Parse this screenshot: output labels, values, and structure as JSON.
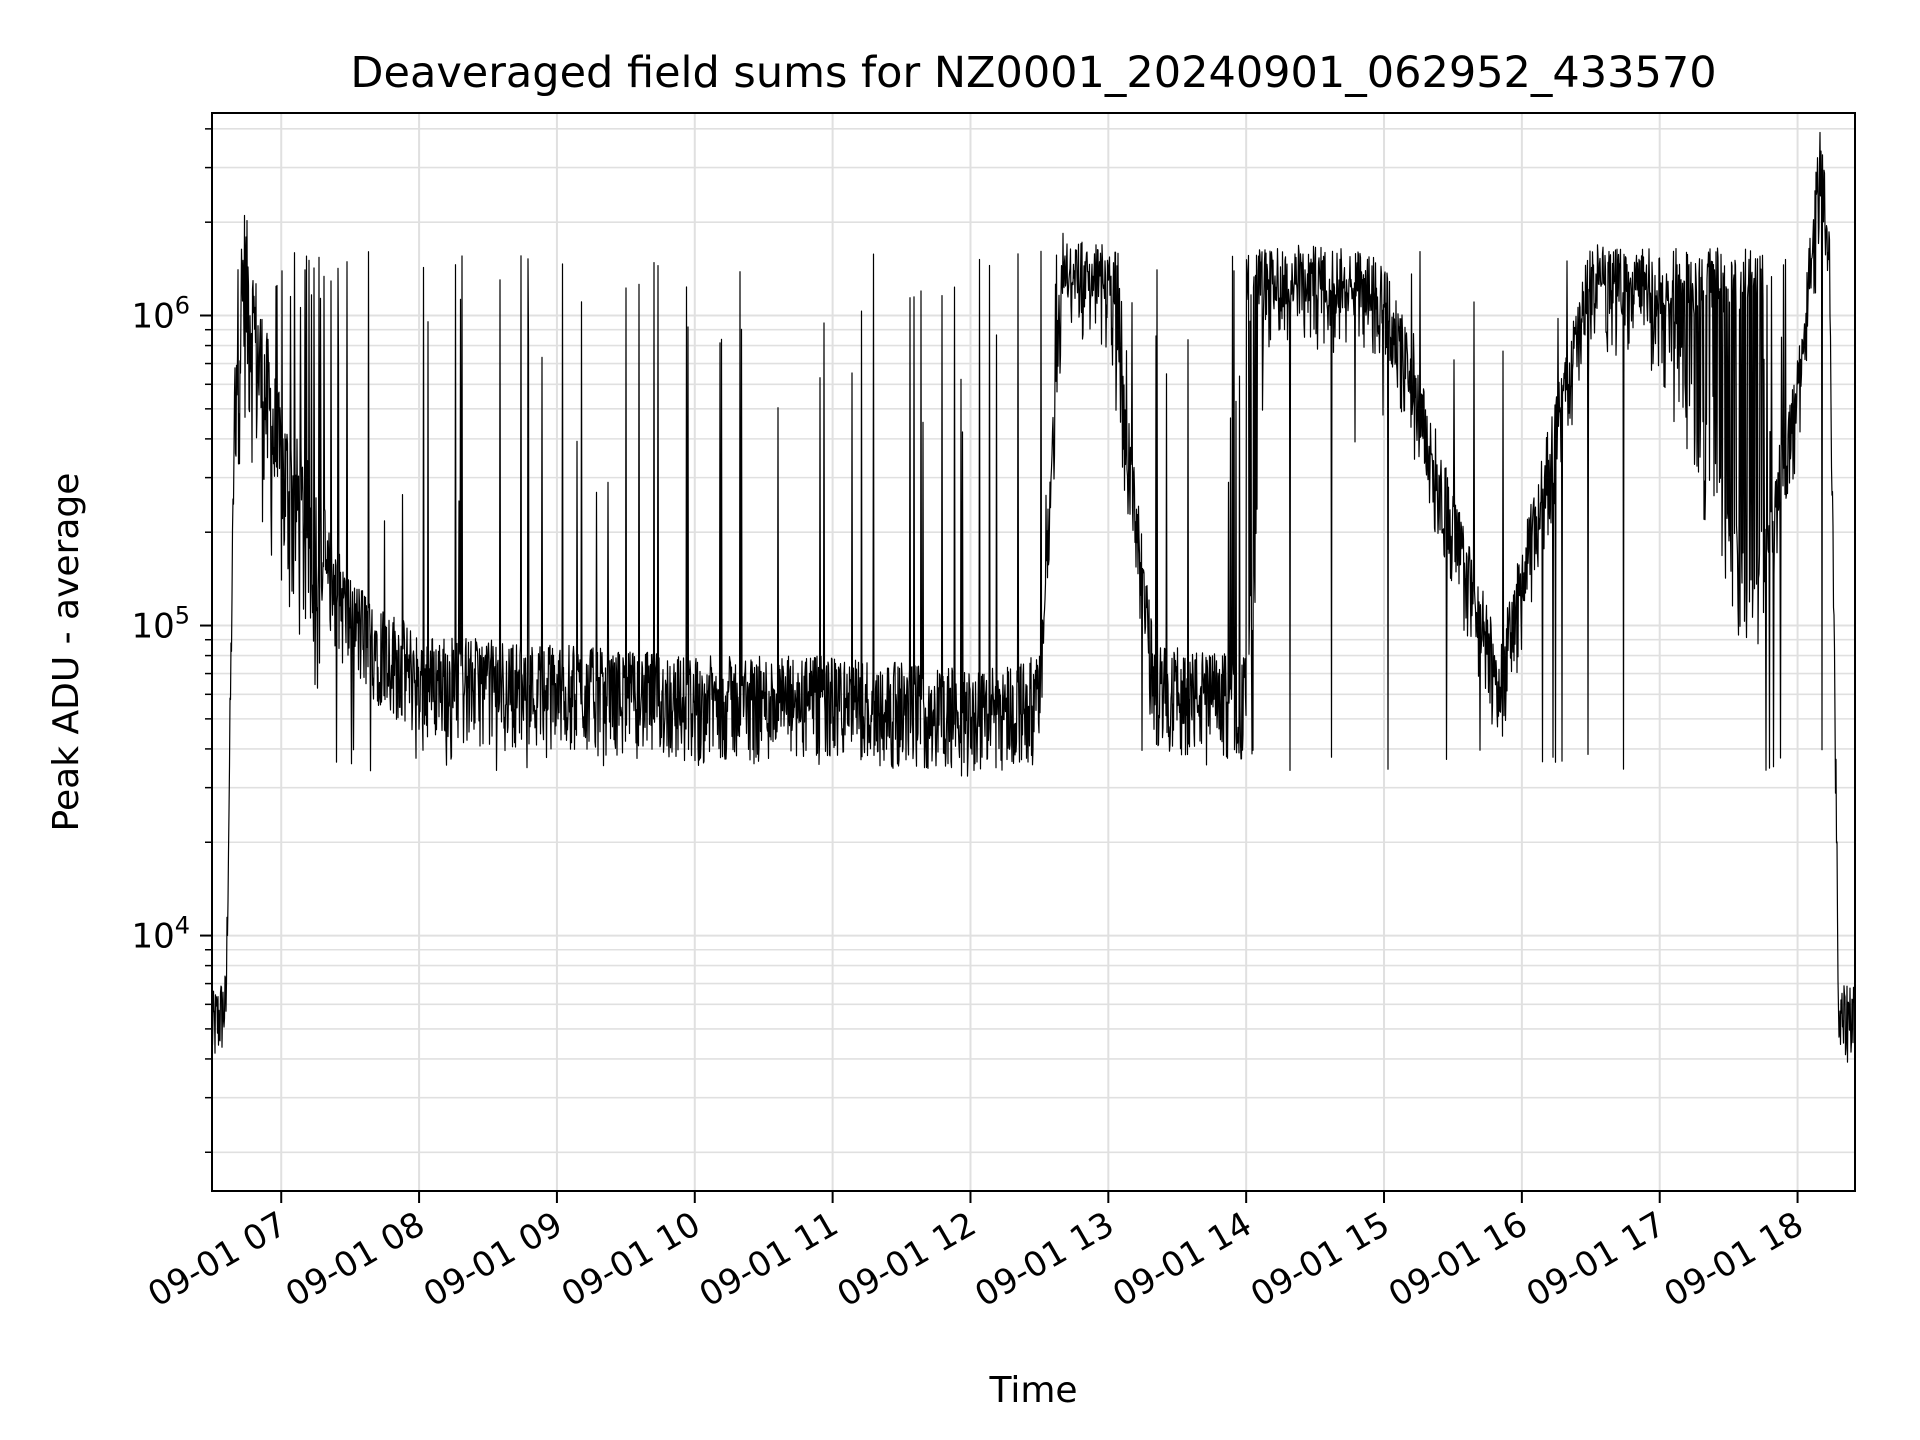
{
  "chart_data": {
    "type": "line",
    "title": "Deaveraged field sums for NZ0001_20240901_062952_433570",
    "xlabel": "Time",
    "ylabel": "Peak ADU - average",
    "yscale": "log",
    "ylim": [
      1500,
      4500000
    ],
    "xlim": [
      "2024-09-01 06:29:52",
      "2024-09-01 18:25:00"
    ],
    "grid": true,
    "line_color": "#000000",
    "grid_color": "#e0e0e0",
    "x_ticks": [
      "09-01 07",
      "09-01 08",
      "09-01 09",
      "09-01 10",
      "09-01 11",
      "09-01 12",
      "09-01 13",
      "09-01 14",
      "09-01 15",
      "09-01 16",
      "09-01 17",
      "09-01 18"
    ],
    "y_ticks": [
      {
        "base": "10",
        "exp": "4",
        "value": 10000
      },
      {
        "base": "10",
        "exp": "5",
        "value": 100000
      },
      {
        "base": "10",
        "exp": "6",
        "value": 1000000
      }
    ],
    "series": [
      {
        "description": "noisy field-sum trace: low ~5e3 at start, rapid rise to ~1.3e6, baseline ~5e4-9e4 with spikes to ~1.6e6, dense high bands, final peak ~3e6 then drop to ~5e3",
        "x": [
          "2024-09-01 06:29:52",
          "2024-09-01 06:36:00",
          "2024-09-01 06:40:00",
          "2024-09-01 06:44:00",
          "2024-09-01 06:50:00",
          "2024-09-01 07:00:00",
          "2024-09-01 07:30:00",
          "2024-09-01 08:00:00",
          "2024-09-01 09:00:00",
          "2024-09-01 10:00:00",
          "2024-09-01 11:00:00",
          "2024-09-01 12:00:00",
          "2024-09-01 12:30:00",
          "2024-09-01 12:40:00",
          "2024-09-01 13:00:00",
          "2024-09-01 13:20:00",
          "2024-09-01 14:00:00",
          "2024-09-01 14:10:00",
          "2024-09-01 15:00:00",
          "2024-09-01 15:50:00",
          "2024-09-01 16:30:00",
          "2024-09-01 17:00:00",
          "2024-09-01 17:40:00",
          "2024-09-01 18:00:00",
          "2024-09-01 18:10:00",
          "2024-09-01 18:14:00",
          "2024-09-01 18:18:00",
          "2024-09-01 18:25:00"
        ],
        "y": [
          5000,
          6000,
          700000,
          1300000,
          700000,
          300000,
          100000,
          65000,
          60000,
          55000,
          55000,
          50000,
          55000,
          1300000,
          1200000,
          60000,
          55000,
          1200000,
          1100000,
          60000,
          1200000,
          1000000,
          100000,
          500000,
          3000000,
          1300000,
          5000,
          6000
        ]
      }
    ]
  }
}
